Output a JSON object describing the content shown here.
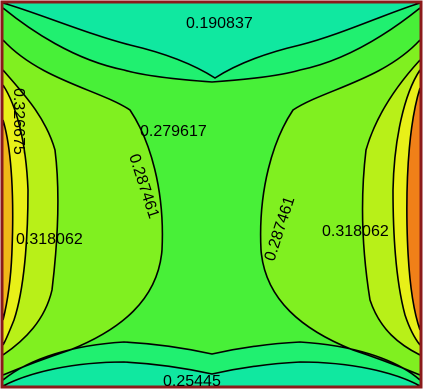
{
  "chart_data": {
    "type": "contour",
    "title": "",
    "xlabel": "",
    "ylabel": "",
    "colors": {
      "frame": "#8b1a1a",
      "level_1": "#10e8a0",
      "level_2": "#20f070",
      "level_3": "#48f038",
      "level_4": "#80f020",
      "level_5": "#b8f018",
      "level_6": "#e8f018",
      "level_7": "#f0b818",
      "level_8": "#f08018",
      "contour_line": "#000000"
    },
    "contour_labels": [
      {
        "text": "0.190837",
        "position": "top-center"
      },
      {
        "text": "0.279617",
        "position": "center"
      },
      {
        "text": "0.287461",
        "position": "center-left",
        "rotation": "steep-down"
      },
      {
        "text": "0.287461",
        "position": "center-right",
        "rotation": "steep-up"
      },
      {
        "text": "0.318062",
        "position": "left"
      },
      {
        "text": "0.318062",
        "position": "right"
      },
      {
        "text": "0.25445",
        "position": "bottom-center"
      },
      {
        "text": "0.326675",
        "position": "left-edge",
        "rotation": "vertical"
      }
    ]
  }
}
